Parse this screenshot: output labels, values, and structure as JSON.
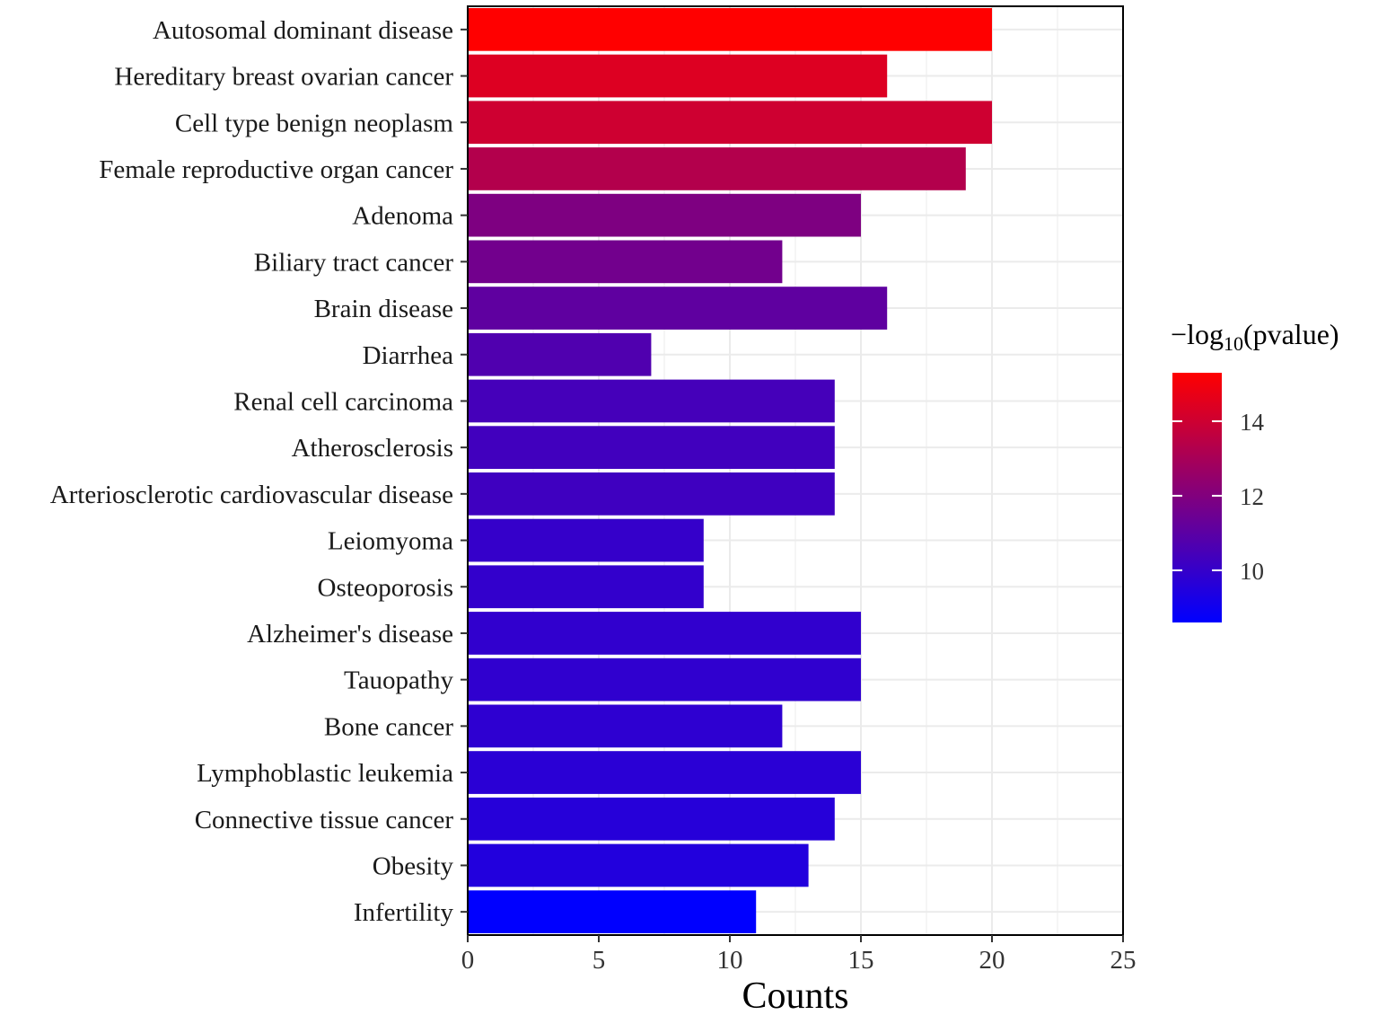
{
  "chart_data": {
    "type": "bar",
    "orientation": "horizontal",
    "categories": [
      "Autosomal dominant disease",
      "Hereditary breast ovarian cancer",
      "Cell type benign neoplasm",
      "Female reproductive organ cancer",
      "Adenoma",
      "Biliary tract cancer",
      "Brain disease",
      "Diarrhea",
      "Renal cell carcinoma",
      "Atherosclerosis",
      "Arteriosclerotic cardiovascular disease",
      "Leiomyoma",
      "Osteoporosis",
      "Alzheimer's disease",
      "Tauopathy",
      "Bone cancer",
      "Lymphoblastic leukemia",
      "Connective tissue cancer",
      "Obesity",
      "Infertility"
    ],
    "values": [
      20,
      16,
      20,
      19,
      15,
      12,
      16,
      7,
      14,
      14,
      14,
      9,
      9,
      15,
      15,
      12,
      15,
      14,
      13,
      11
    ],
    "color_values": [
      15.3,
      14.4,
      14.0,
      13.3,
      11.9,
      11.6,
      11.1,
      10.7,
      10.4,
      10.3,
      10.25,
      10.0,
      9.95,
      9.9,
      9.85,
      9.8,
      9.7,
      9.6,
      9.5,
      8.6
    ],
    "xlabel": "Counts",
    "ylabel": "",
    "xlim": [
      0,
      25
    ],
    "xticks": [
      "0",
      "5",
      "10",
      "15",
      "20",
      "25"
    ],
    "grid": true,
    "legend": {
      "title_prefix": "−log",
      "title_sub": "10",
      "title_suffix": "(pvalue)",
      "placement": "right",
      "ticks": [
        "14",
        "12",
        "10"
      ],
      "tick_values": [
        14,
        12,
        10
      ],
      "range": [
        8.6,
        15.3
      ],
      "color_low": "#0000ff",
      "color_high": "#ff0000"
    }
  }
}
